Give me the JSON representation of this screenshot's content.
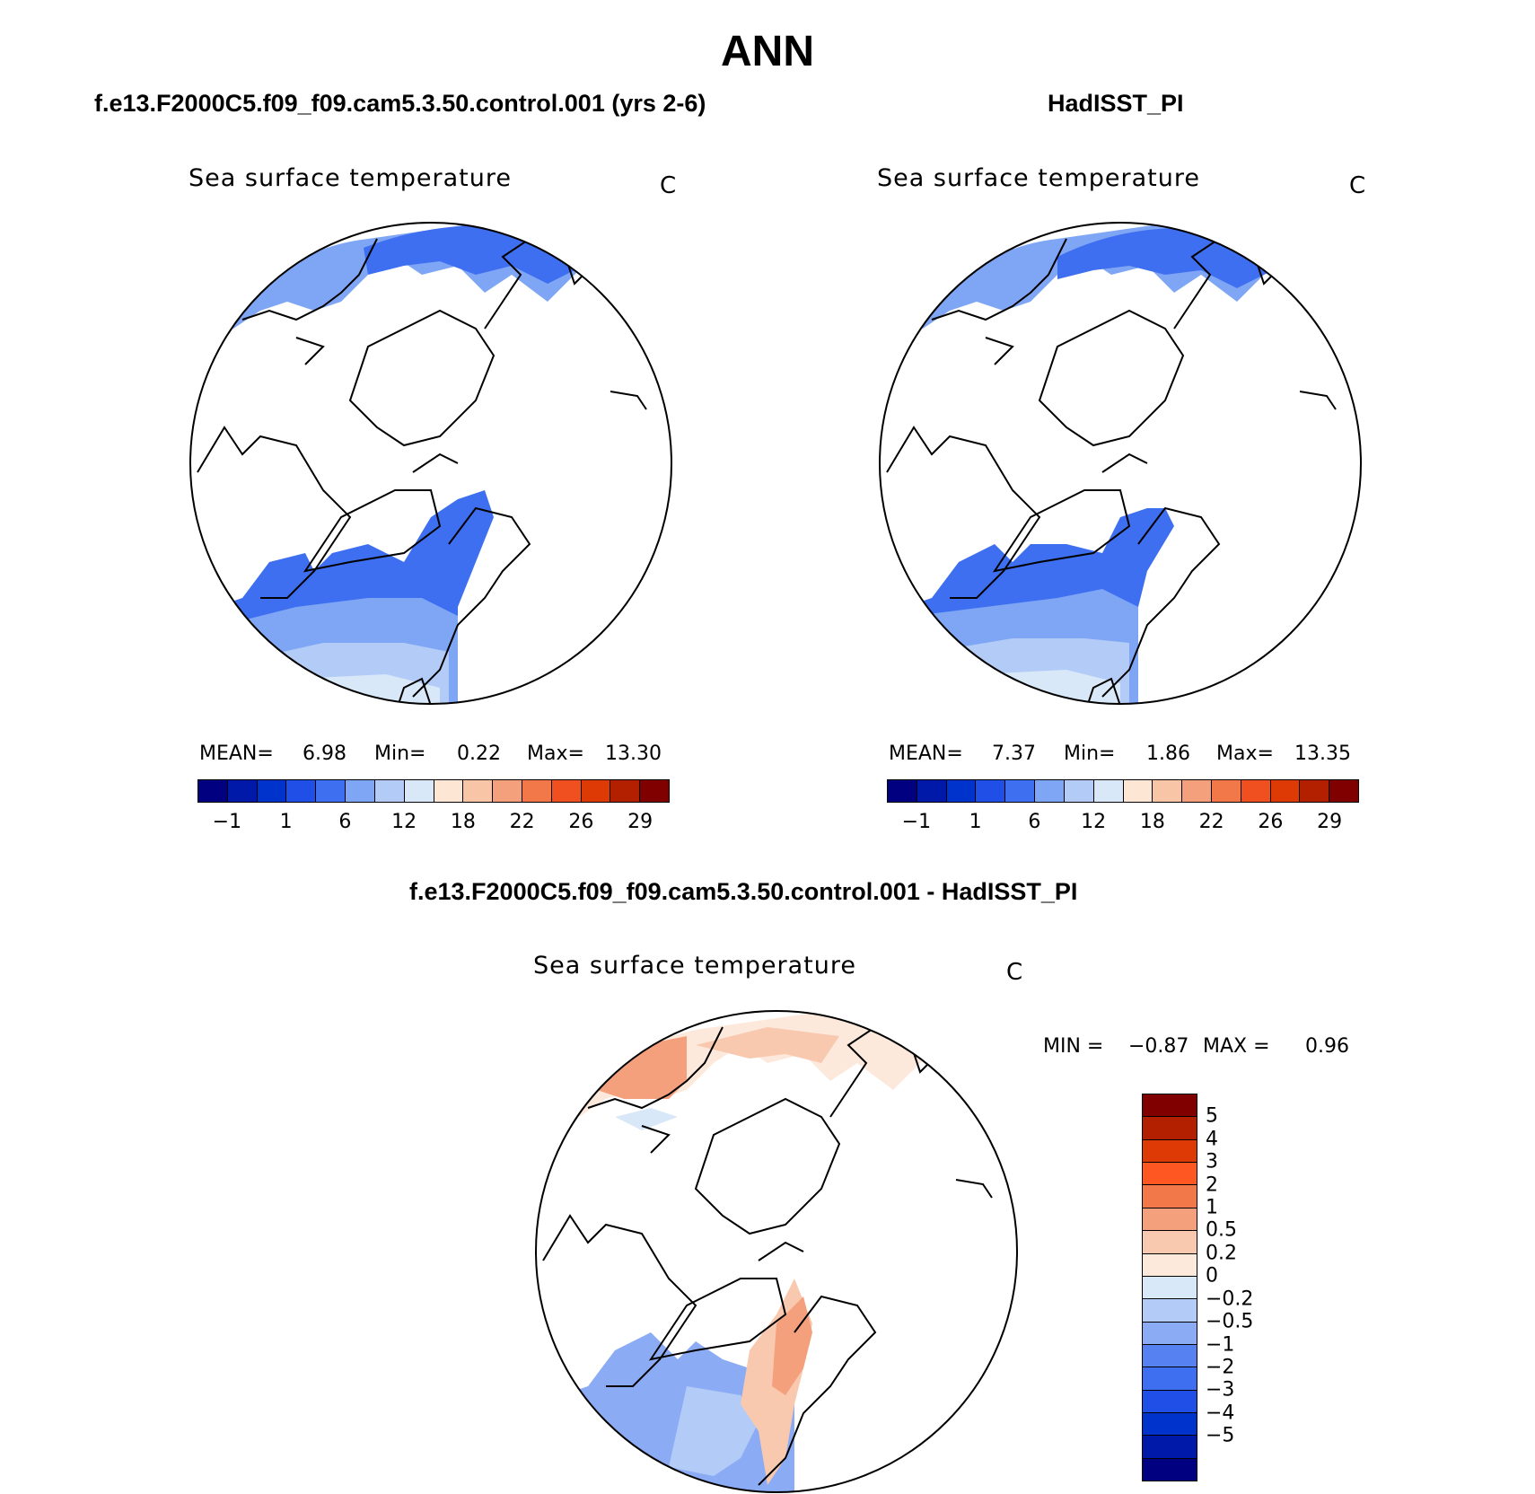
{
  "title": "ANN",
  "panels": [
    {
      "case": "f.e13.F2000C5.f09_f09.cam5.3.50.control.001 (yrs 2-6)",
      "variable": "Sea surface temperature",
      "units": "C",
      "stats": {
        "mean_label": "MEAN=",
        "mean": "6.98",
        "min_label": "Min=",
        "min": "0.22",
        "max_label": "Max=",
        "max": "13.30"
      }
    },
    {
      "case": "HadISST_PI",
      "variable": "Sea surface temperature",
      "units": "C",
      "stats": {
        "mean_label": "MEAN=",
        "mean": "7.37",
        "min_label": "Min=",
        "min": "1.86",
        "max_label": "Max=",
        "max": "13.35"
      }
    },
    {
      "case": "f.e13.F2000C5.f09_f09.cam5.3.50.control.001 - HadISST_PI",
      "variable": "Sea surface temperature",
      "units": "C",
      "stats": {
        "min_label": "MIN =",
        "min": "−0.87",
        "max_label": "MAX =",
        "max": "0.96"
      }
    }
  ],
  "colorbar_abs": {
    "colors": [
      "#000080",
      "#0019a8",
      "#0033cc",
      "#1f4fe6",
      "#3d6ff0",
      "#7fa6f5",
      "#b3ccf7",
      "#d9e8f8",
      "#fde6d4",
      "#f8c6a6",
      "#f5a07d",
      "#f27849",
      "#f05020",
      "#de3a06",
      "#b32000",
      "#800000"
    ],
    "ticks": [
      "−1",
      "1",
      "6",
      "12",
      "18",
      "22",
      "26",
      "29"
    ]
  },
  "colorbar_diff": {
    "colors": [
      "#800000",
      "#b32000",
      "#de3a06",
      "#ff5722",
      "#f27849",
      "#f5a07d",
      "#f8c9af",
      "#fde9dc",
      "#d9e8f8",
      "#b3ccf7",
      "#8cabf5",
      "#5582f0",
      "#3d6ff0",
      "#1f4fe6",
      "#0033cc",
      "#0019a8",
      "#000080"
    ],
    "ticks": [
      "5",
      "4",
      "3",
      "2",
      "1",
      "0.5",
      "0.2",
      "0",
      "−0.2",
      "−0.5",
      "−1",
      "−2",
      "−3",
      "−4",
      "−5"
    ]
  }
}
